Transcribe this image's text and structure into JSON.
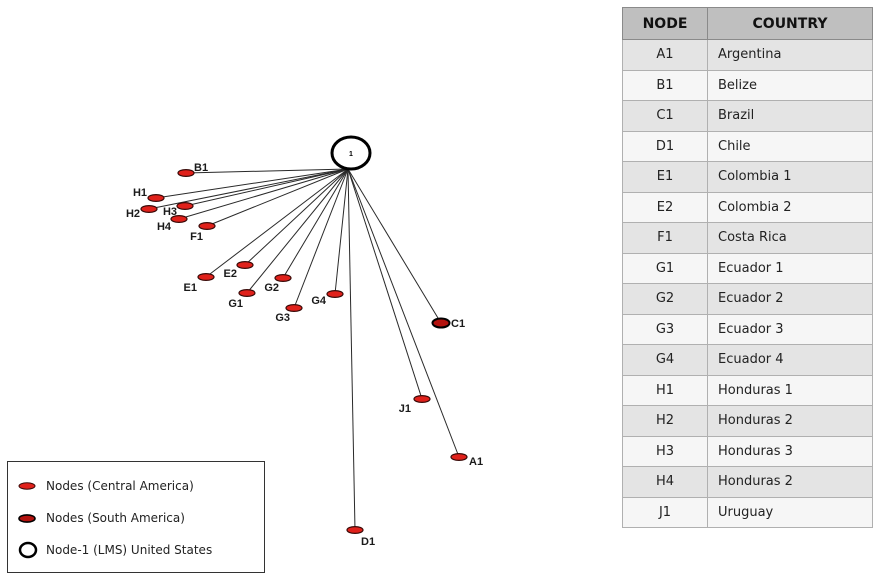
{
  "hub": {
    "label": "1"
  },
  "nodes": [
    {
      "id": "B1",
      "region": "central"
    },
    {
      "id": "H1",
      "region": "central"
    },
    {
      "id": "H2",
      "region": "central"
    },
    {
      "id": "H3",
      "region": "central"
    },
    {
      "id": "H4",
      "region": "central"
    },
    {
      "id": "F1",
      "region": "central"
    },
    {
      "id": "E2",
      "region": "central"
    },
    {
      "id": "E1",
      "region": "central"
    },
    {
      "id": "G2",
      "region": "central"
    },
    {
      "id": "G1",
      "region": "central"
    },
    {
      "id": "G4",
      "region": "central"
    },
    {
      "id": "G3",
      "region": "central"
    },
    {
      "id": "C1",
      "region": "south"
    },
    {
      "id": "J1",
      "region": "central"
    },
    {
      "id": "A1",
      "region": "central"
    },
    {
      "id": "D1",
      "region": "central"
    }
  ],
  "legend": {
    "central_label": "Nodes (Central America)",
    "south_label": "Nodes (South America)",
    "hub_label": "Node-1 (LMS) United States"
  },
  "table": {
    "headers": [
      "NODE",
      "COUNTRY"
    ],
    "rows": [
      [
        "A1",
        "Argentina"
      ],
      [
        "B1",
        "Belize"
      ],
      [
        "C1",
        "Brazil"
      ],
      [
        "D1",
        "Chile"
      ],
      [
        "E1",
        "Colombia 1"
      ],
      [
        "E2",
        "Colombia 2"
      ],
      [
        "F1",
        "Costa Rica"
      ],
      [
        "G1",
        "Ecuador 1"
      ],
      [
        "G2",
        "Ecuador 2"
      ],
      [
        "G3",
        "Ecuador 3"
      ],
      [
        "G4",
        "Ecuador 4"
      ],
      [
        "H1",
        "Honduras 1"
      ],
      [
        "H2",
        "Honduras 2"
      ],
      [
        "H3",
        "Honduras 3"
      ],
      [
        "H4",
        "Honduras 2"
      ],
      [
        "J1",
        "Uruguay"
      ]
    ]
  },
  "colors": {
    "central_fill": "#e0211b",
    "central_stroke": "#3a0a08",
    "south_fill": "#b3120e",
    "south_stroke": "#000000",
    "edge": "#2a2a2a",
    "hub_stroke": "#000000"
  }
}
